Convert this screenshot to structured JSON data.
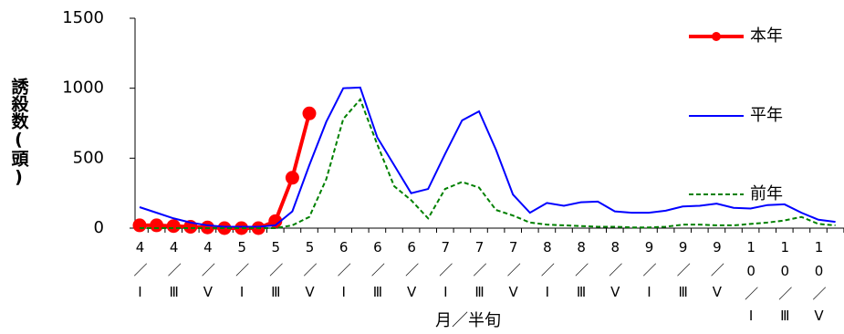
{
  "chart_data": {
    "type": "line",
    "y_label": "誘殺数(頭)",
    "x_label": "月／半旬",
    "categories": [
      "4／Ⅰ",
      null,
      "4／Ⅲ",
      null,
      "4／Ⅴ",
      null,
      "5／Ⅰ",
      null,
      "5／Ⅲ",
      null,
      "5／Ⅴ",
      null,
      "6／Ⅰ",
      null,
      "6／Ⅲ",
      null,
      "6／Ⅴ",
      null,
      "7／Ⅰ",
      null,
      "7／Ⅲ",
      null,
      "7／Ⅴ",
      null,
      "8／Ⅰ",
      null,
      "8／Ⅲ",
      null,
      "8／Ⅴ",
      null,
      "9／Ⅰ",
      null,
      "9／Ⅲ",
      null,
      "9／Ⅴ",
      null,
      "10／Ⅰ",
      null,
      "10／Ⅲ",
      null,
      "10／Ⅴ",
      null
    ],
    "series": [
      {
        "name": "本年",
        "color": "#ff0000",
        "style": "solid-markers",
        "values": [
          20,
          20,
          15,
          10,
          5,
          0,
          0,
          0,
          50,
          360,
          820,
          null,
          null,
          null,
          null,
          null,
          null,
          null,
          null,
          null,
          null,
          null,
          null,
          null,
          null,
          null,
          null,
          null,
          null,
          null,
          null,
          null,
          null,
          null,
          null,
          null,
          null,
          null,
          null,
          null,
          null,
          null
        ]
      },
      {
        "name": "平年",
        "color": "#0000ff",
        "style": "solid",
        "values": [
          150,
          110,
          70,
          40,
          20,
          10,
          10,
          10,
          20,
          120,
          450,
          760,
          1000,
          1005,
          650,
          450,
          250,
          280,
          530,
          770,
          835,
          560,
          240,
          110,
          180,
          160,
          185,
          190,
          120,
          110,
          110,
          125,
          155,
          160,
          175,
          145,
          140,
          165,
          170,
          110,
          60,
          45
        ]
      },
      {
        "name": "前年",
        "color": "#008000",
        "style": "dashed",
        "values": [
          0,
          0,
          0,
          0,
          0,
          0,
          0,
          0,
          0,
          20,
          80,
          350,
          780,
          920,
          600,
          300,
          200,
          70,
          280,
          330,
          290,
          130,
          90,
          40,
          25,
          20,
          15,
          10,
          10,
          5,
          5,
          10,
          25,
          25,
          20,
          20,
          30,
          40,
          55,
          80,
          30,
          20
        ]
      }
    ],
    "ylim": [
      0,
      1500
    ],
    "yticks": [
      0,
      500,
      1000,
      1500
    ]
  }
}
